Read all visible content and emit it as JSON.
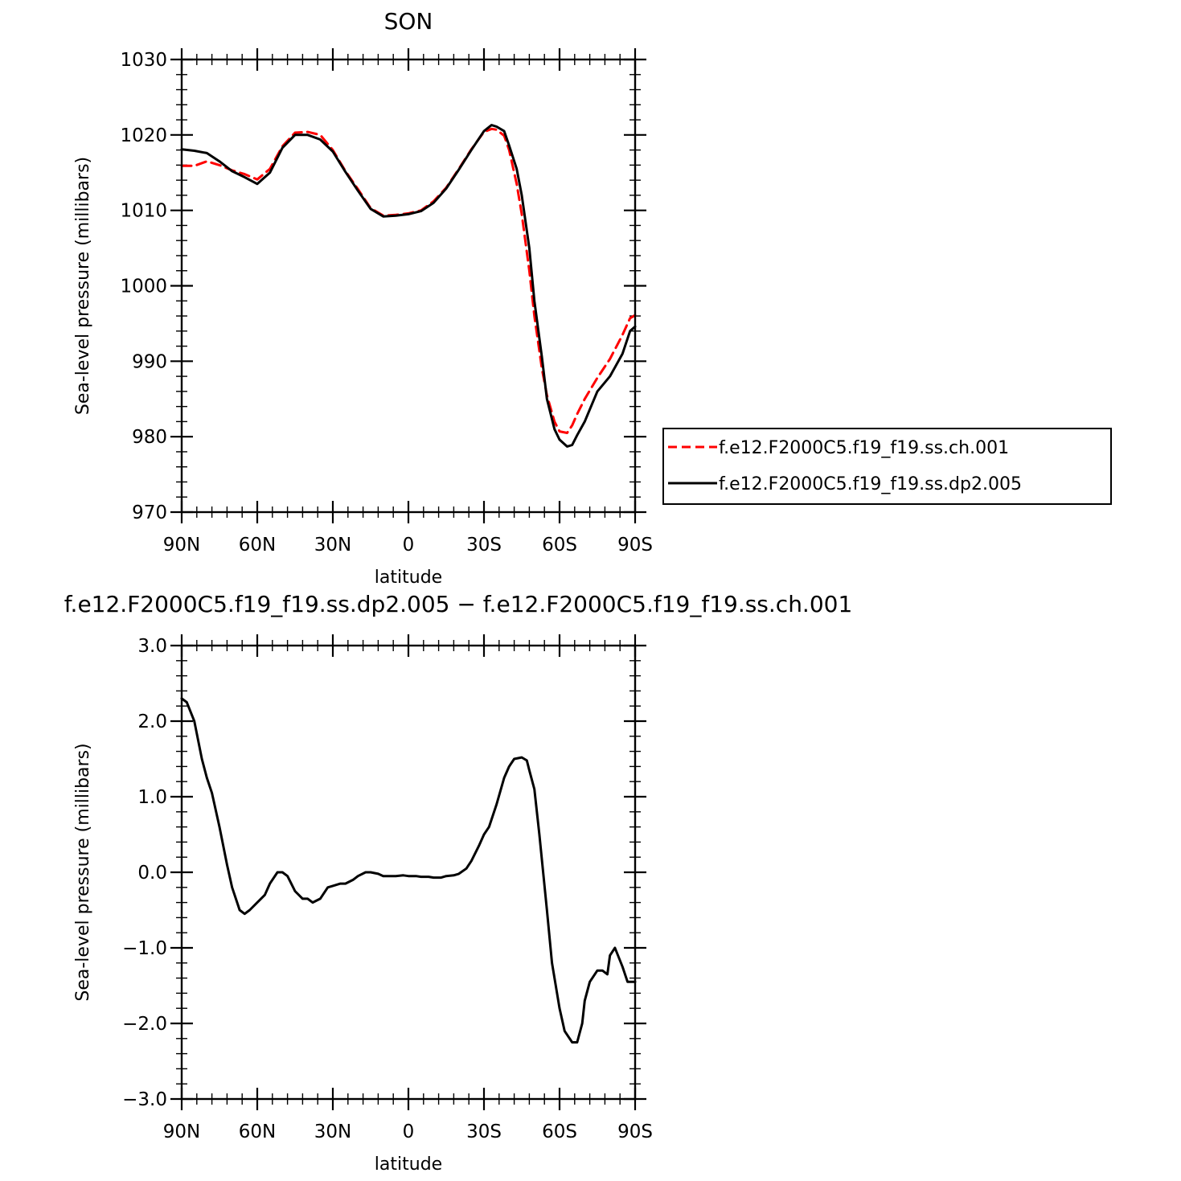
{
  "colors": {
    "axis": "#000000",
    "ch001": "#ff0000",
    "dp2005": "#000000",
    "background": "#ffffff"
  },
  "chart_data": [
    {
      "type": "line",
      "title": "SON",
      "xlabel": "latitude",
      "ylabel": "Sea-level pressure (millibars)",
      "xlim": [
        -90,
        90
      ],
      "ylim": [
        970,
        1030
      ],
      "x_direction": "north-to-south",
      "x_ticks": [
        {
          "value": -90,
          "label": "90N"
        },
        {
          "value": -60,
          "label": "60N"
        },
        {
          "value": -30,
          "label": "30N"
        },
        {
          "value": 0,
          "label": "0"
        },
        {
          "value": 30,
          "label": "30S"
        },
        {
          "value": 60,
          "label": "60S"
        },
        {
          "value": 90,
          "label": "90S"
        }
      ],
      "y_ticks": [
        {
          "value": 970,
          "label": "970"
        },
        {
          "value": 980,
          "label": "980"
        },
        {
          "value": 990,
          "label": "990"
        },
        {
          "value": 1000,
          "label": "1000"
        },
        {
          "value": 1010,
          "label": "1010"
        },
        {
          "value": 1020,
          "label": "1020"
        },
        {
          "value": 1030,
          "label": "1030"
        }
      ],
      "grid": false,
      "legend": {
        "placement": "right"
      },
      "series": [
        {
          "name": "f.e12.F2000C5.f19_f19.ss.ch.001",
          "color": "#ff0000",
          "dash": true,
          "x": [
            -90,
            -85,
            -80,
            -75,
            -70,
            -65,
            -60,
            -55,
            -50,
            -45,
            -40,
            -35,
            -30,
            -25,
            -20,
            -15,
            -10,
            -5,
            0,
            5,
            10,
            15,
            20,
            25,
            30,
            33,
            35,
            38,
            40,
            43,
            45,
            48,
            50,
            53,
            55,
            58,
            60,
            63,
            65,
            67,
            70,
            75,
            80,
            85,
            88,
            90
          ],
          "values": [
            1015.9,
            1015.9,
            1016.5,
            1016.0,
            1015.3,
            1014.8,
            1014.1,
            1015.5,
            1018.5,
            1020.3,
            1020.4,
            1020.0,
            1018.0,
            1015.2,
            1012.8,
            1010.3,
            1009.3,
            1009.4,
            1009.6,
            1010.0,
            1011.2,
            1013.0,
            1015.5,
            1018.1,
            1020.4,
            1020.8,
            1020.7,
            1019.9,
            1018.0,
            1013.5,
            1009.5,
            1002.0,
            996.0,
            989.0,
            985.5,
            982.0,
            980.7,
            980.5,
            981.5,
            983.0,
            985.0,
            987.8,
            990.3,
            993.5,
            995.7,
            996.1
          ]
        },
        {
          "name": "f.e12.F2000C5.f19_f19.ss.dp2.005",
          "color": "#000000",
          "dash": false,
          "x": [
            -90,
            -85,
            -80,
            -75,
            -70,
            -65,
            -60,
            -55,
            -50,
            -45,
            -40,
            -35,
            -30,
            -25,
            -20,
            -15,
            -10,
            -5,
            0,
            5,
            10,
            15,
            20,
            25,
            30,
            33,
            35,
            38,
            40,
            43,
            45,
            48,
            50,
            53,
            55,
            58,
            60,
            63,
            65,
            67,
            70,
            75,
            80,
            85,
            88,
            90
          ],
          "values": [
            1018.1,
            1017.9,
            1017.6,
            1016.5,
            1015.2,
            1014.4,
            1013.5,
            1015.0,
            1018.3,
            1020.0,
            1020.0,
            1019.4,
            1017.8,
            1015.1,
            1012.6,
            1010.2,
            1009.2,
            1009.3,
            1009.5,
            1009.9,
            1011.0,
            1012.9,
            1015.4,
            1018.0,
            1020.5,
            1021.3,
            1021.1,
            1020.5,
            1018.6,
            1015.5,
            1012.0,
            1005.0,
            998.0,
            990.5,
            985.0,
            981.0,
            979.6,
            978.7,
            978.9,
            980.2,
            982.0,
            986.0,
            988.0,
            991.0,
            994.0,
            994.6
          ]
        }
      ]
    },
    {
      "type": "line",
      "title": "f.e12.F2000C5.f19_f19.ss.dp2.005 − f.e12.F2000C5.f19_f19.ss.ch.001",
      "xlabel": "latitude",
      "ylabel": "Sea-level pressure (millibars)",
      "xlim": [
        -90,
        90
      ],
      "ylim": [
        -3.0,
        3.0
      ],
      "x_direction": "north-to-south",
      "x_ticks": [
        {
          "value": -90,
          "label": "90N"
        },
        {
          "value": -60,
          "label": "60N"
        },
        {
          "value": -30,
          "label": "30N"
        },
        {
          "value": 0,
          "label": "0"
        },
        {
          "value": 30,
          "label": "30S"
        },
        {
          "value": 60,
          "label": "60S"
        },
        {
          "value": 90,
          "label": "90S"
        }
      ],
      "y_ticks": [
        {
          "value": -3.0,
          "label": "−3.0"
        },
        {
          "value": -2.0,
          "label": "−2.0"
        },
        {
          "value": -1.0,
          "label": "−1.0"
        },
        {
          "value": 0.0,
          "label": "0.0"
        },
        {
          "value": 1.0,
          "label": "1.0"
        },
        {
          "value": 2.0,
          "label": "2.0"
        },
        {
          "value": 3.0,
          "label": "3.0"
        }
      ],
      "grid": false,
      "series": [
        {
          "color": "#000000",
          "dash": false,
          "x": [
            -90,
            -88,
            -85,
            -82,
            -80,
            -78,
            -75,
            -72,
            -70,
            -67,
            -65,
            -63,
            -60,
            -57,
            -55,
            -52,
            -50,
            -48,
            -45,
            -42,
            -40,
            -38,
            -35,
            -32,
            -30,
            -27,
            -25,
            -22,
            -20,
            -17,
            -15,
            -12,
            -10,
            -7,
            -5,
            -2,
            0,
            3,
            5,
            8,
            10,
            13,
            15,
            18,
            20,
            23,
            25,
            28,
            30,
            32,
            35,
            38,
            40,
            42,
            45,
            47,
            48,
            50,
            52,
            55,
            57,
            60,
            62,
            65,
            67,
            69,
            70,
            72,
            75,
            77,
            79,
            80,
            82,
            85,
            87,
            90
          ],
          "values": [
            2.3,
            2.25,
            2.0,
            1.5,
            1.25,
            1.05,
            0.6,
            0.1,
            -0.2,
            -0.5,
            -0.55,
            -0.5,
            -0.4,
            -0.3,
            -0.15,
            0.0,
            0.0,
            -0.05,
            -0.25,
            -0.35,
            -0.35,
            -0.4,
            -0.35,
            -0.2,
            -0.18,
            -0.15,
            -0.15,
            -0.1,
            -0.05,
            0.0,
            0.0,
            -0.02,
            -0.05,
            -0.05,
            -0.05,
            -0.04,
            -0.05,
            -0.05,
            -0.06,
            -0.06,
            -0.07,
            -0.07,
            -0.05,
            -0.04,
            -0.02,
            0.05,
            0.15,
            0.35,
            0.5,
            0.6,
            0.9,
            1.25,
            1.4,
            1.5,
            1.52,
            1.48,
            1.35,
            1.1,
            0.5,
            -0.5,
            -1.2,
            -1.8,
            -2.1,
            -2.25,
            -2.25,
            -2.0,
            -1.7,
            -1.45,
            -1.3,
            -1.3,
            -1.35,
            -1.1,
            -1.0,
            -1.25,
            -1.45,
            -1.45
          ]
        }
      ]
    }
  ]
}
